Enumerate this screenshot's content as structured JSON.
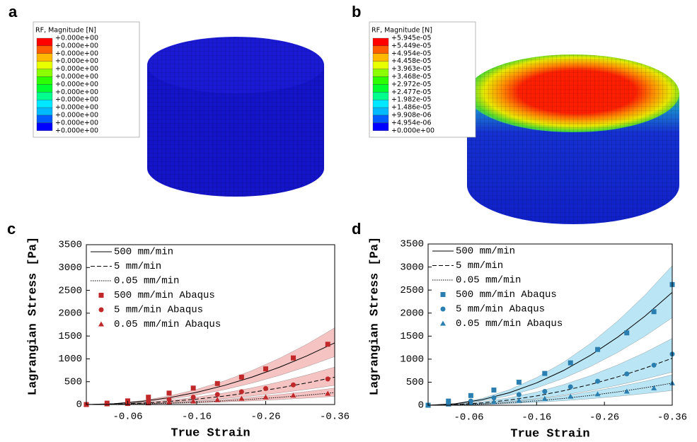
{
  "panel_labels": [
    "a",
    "b",
    "c",
    "d"
  ],
  "contour_legends": [
    {
      "title": "RF, Magnitude [N]",
      "labels": [
        "+0.000e+00",
        "+0.000e+00",
        "+0.000e+00",
        "+0.000e+00",
        "+0.000e+00",
        "+0.000e+00",
        "+0.000e+00",
        "+0.000e+00",
        "+0.000e+00",
        "+0.000e+00",
        "+0.000e+00",
        "+0.000e+00",
        "+0.000e+00"
      ]
    },
    {
      "title": "RF, Magnitude [N]",
      "labels": [
        "+5.945e-05",
        "+5.449e-05",
        "+4.954e-05",
        "+4.458e-05",
        "+3.963e-05",
        "+3.468e-05",
        "+2.972e-05",
        "+2.477e-05",
        "+1.982e-05",
        "+1.486e-05",
        "+9.908e-06",
        "+4.954e-06",
        "+0.000e+00"
      ]
    }
  ],
  "chart_data": [
    {
      "type": "line",
      "x_label": "True Strain",
      "y_label": "Lagrangian Stress [Pa]",
      "xlim": [
        0,
        -0.36
      ],
      "xticks": [
        -0.06,
        -0.16,
        -0.26,
        -0.36
      ],
      "ylim": [
        0,
        3500
      ],
      "yticks": [
        0,
        500,
        1000,
        1500,
        2000,
        2500,
        3000,
        3500
      ],
      "series": [
        {
          "name": "500 mm/min",
          "kind": "line",
          "dash": "solid",
          "color": "#000000",
          "band_color": "#f5b9b9",
          "x": [
            0,
            -0.04,
            -0.08,
            -0.12,
            -0.16,
            -0.2,
            -0.24,
            -0.28,
            -0.32,
            -0.36
          ],
          "values": [
            0,
            17,
            67,
            150,
            267,
            417,
            600,
            817,
            1067,
            1350
          ],
          "band_lower": [
            0,
            13,
            52,
            117,
            208,
            325,
            468,
            637,
            832,
            1050
          ],
          "band_upper": [
            0,
            21,
            83,
            187,
            331,
            517,
            744,
            1013,
            1323,
            1680
          ]
        },
        {
          "name": "5 mm/min",
          "kind": "line",
          "dash": "dashed",
          "color": "#000000",
          "band_color": "#f5b9b9",
          "x": [
            0,
            -0.04,
            -0.08,
            -0.12,
            -0.16,
            -0.2,
            -0.24,
            -0.28,
            -0.32,
            -0.36
          ],
          "values": [
            0,
            7,
            30,
            67,
            119,
            185,
            267,
            363,
            474,
            600
          ],
          "band_lower": [
            0,
            5,
            21,
            47,
            83,
            130,
            187,
            254,
            332,
            420
          ],
          "band_upper": [
            0,
            10,
            40,
            91,
            162,
            253,
            364,
            496,
            648,
            820
          ]
        },
        {
          "name": "0.05 mm/min",
          "kind": "line",
          "dash": "dotted",
          "color": "#000000",
          "band_color": "#f5b9b9",
          "x": [
            0,
            -0.04,
            -0.08,
            -0.12,
            -0.16,
            -0.2,
            -0.24,
            -0.28,
            -0.32,
            -0.36
          ],
          "values": [
            0,
            3,
            13,
            29,
            51,
            80,
            116,
            157,
            205,
            260
          ],
          "band_lower": [
            0,
            2,
            9,
            20,
            36,
            56,
            80,
            109,
            142,
            180
          ],
          "band_upper": [
            0,
            4,
            18,
            40,
            71,
            111,
            160,
            218,
            284,
            360
          ]
        },
        {
          "name": "500 mm/min Abaqus",
          "kind": "scatter",
          "marker": "square",
          "color": "#c0282a",
          "x": [
            0,
            -0.03,
            -0.06,
            -0.09,
            -0.12,
            -0.155,
            -0.19,
            -0.225,
            -0.26,
            -0.3,
            -0.35
          ],
          "values": [
            0,
            30,
            80,
            160,
            250,
            360,
            460,
            600,
            780,
            1020,
            1320
          ]
        },
        {
          "name": "5 mm/min Abaqus",
          "kind": "scatter",
          "marker": "circle",
          "color": "#c0282a",
          "x": [
            0,
            -0.03,
            -0.06,
            -0.09,
            -0.12,
            -0.155,
            -0.19,
            -0.225,
            -0.26,
            -0.3,
            -0.35
          ],
          "values": [
            0,
            15,
            40,
            70,
            110,
            160,
            220,
            280,
            350,
            430,
            560
          ]
        },
        {
          "name": "0.05 mm/min Abaqus",
          "kind": "scatter",
          "marker": "triangle",
          "color": "#c0282a",
          "x": [
            0,
            -0.03,
            -0.06,
            -0.09,
            -0.12,
            -0.155,
            -0.19,
            -0.225,
            -0.26,
            -0.3,
            -0.35
          ],
          "values": [
            0,
            8,
            15,
            30,
            50,
            70,
            100,
            130,
            160,
            200,
            240
          ]
        }
      ]
    },
    {
      "type": "line",
      "x_label": "True Strain",
      "y_label": "Lagrangian Stress [Pa]",
      "xlim": [
        0,
        -0.36
      ],
      "xticks": [
        -0.06,
        -0.16,
        -0.26,
        -0.36
      ],
      "ylim": [
        0,
        3500
      ],
      "yticks": [
        0,
        500,
        1000,
        1500,
        2000,
        2500,
        3000,
        3500
      ],
      "series": [
        {
          "name": "500 mm/min",
          "kind": "line",
          "dash": "solid",
          "color": "#000000",
          "band_color": "#aee0f3",
          "x": [
            0,
            -0.04,
            -0.08,
            -0.12,
            -0.16,
            -0.2,
            -0.24,
            -0.28,
            -0.32,
            -0.36
          ],
          "values": [
            0,
            30,
            121,
            272,
            484,
            756,
            1089,
            1482,
            1936,
            2450
          ],
          "band_lower": [
            0,
            23,
            94,
            211,
            375,
            586,
            844,
            1149,
            1501,
            1900
          ],
          "band_upper": [
            0,
            37,
            150,
            337,
            599,
            935,
            1347,
            1833,
            2394,
            3030
          ]
        },
        {
          "name": "5 mm/min",
          "kind": "line",
          "dash": "dashed",
          "color": "#000000",
          "band_color": "#aee0f3",
          "x": [
            0,
            -0.04,
            -0.08,
            -0.12,
            -0.16,
            -0.2,
            -0.24,
            -0.28,
            -0.32,
            -0.36
          ],
          "values": [
            0,
            13,
            50,
            113,
            201,
            315,
            453,
            617,
            806,
            1020
          ],
          "band_lower": [
            0,
            9,
            36,
            80,
            142,
            222,
            320,
            436,
            569,
            720
          ],
          "band_upper": [
            0,
            18,
            72,
            161,
            286,
            448,
            644,
            877,
            1146,
            1450
          ]
        },
        {
          "name": "0.05 mm/min",
          "kind": "line",
          "dash": "dotted",
          "color": "#000000",
          "band_color": "#aee0f3",
          "x": [
            0,
            -0.04,
            -0.08,
            -0.12,
            -0.16,
            -0.2,
            -0.24,
            -0.28,
            -0.32,
            -0.36
          ],
          "values": [
            0,
            6,
            24,
            53,
            95,
            148,
            213,
            290,
            379,
            480
          ],
          "band_lower": [
            0,
            4,
            16,
            36,
            63,
            99,
            142,
            194,
            253,
            320
          ],
          "band_upper": [
            0,
            8,
            33,
            73,
            130,
            204,
            293,
            399,
            521,
            660
          ]
        },
        {
          "name": "500 mm/min Abaqus",
          "kind": "scatter",
          "marker": "square",
          "color": "#2a7fb0",
          "x": [
            0,
            -0.03,
            -0.063,
            -0.097,
            -0.134,
            -0.172,
            -0.21,
            -0.25,
            -0.293,
            -0.333,
            -0.36
          ],
          "values": [
            0,
            90,
            210,
            330,
            500,
            690,
            920,
            1210,
            1570,
            2030,
            2620
          ]
        },
        {
          "name": "5 mm/min Abaqus",
          "kind": "scatter",
          "marker": "circle",
          "color": "#2a7fb0",
          "x": [
            0,
            -0.03,
            -0.063,
            -0.097,
            -0.134,
            -0.172,
            -0.21,
            -0.25,
            -0.293,
            -0.333,
            -0.36
          ],
          "values": [
            0,
            40,
            90,
            160,
            230,
            300,
            400,
            520,
            680,
            870,
            1110
          ]
        },
        {
          "name": "0.05 mm/min Abaqus",
          "kind": "scatter",
          "marker": "triangle",
          "color": "#2a7fb0",
          "x": [
            0,
            -0.03,
            -0.063,
            -0.097,
            -0.134,
            -0.172,
            -0.21,
            -0.25,
            -0.293,
            -0.333,
            -0.36
          ],
          "values": [
            0,
            20,
            40,
            70,
            100,
            140,
            190,
            240,
            300,
            370,
            480
          ]
        }
      ]
    }
  ]
}
